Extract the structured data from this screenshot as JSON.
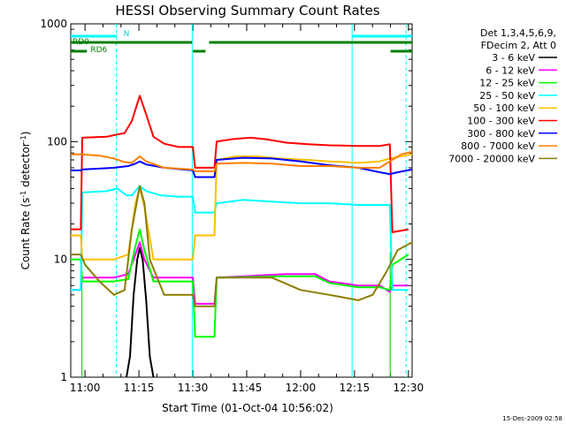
{
  "chart_data": {
    "type": "line",
    "title": "HESSI Observing Summary Count Rates",
    "xlabel": "Start Time (01-Oct-04 10:56:02)",
    "ylabel": "Count Rate (s⁻¹ detector⁻¹)",
    "ylabel_base": "Count Rate (s",
    "ylabel_sup1": "-1",
    "ylabel_mid": " detector",
    "ylabel_sup2": "-1",
    "ylabel_end": ")",
    "x_unit": "minutes after 10:56:02",
    "xlim": [
      0,
      95
    ],
    "ylim": [
      1,
      1000
    ],
    "yscale": "log",
    "x_ticks": [
      {
        "label": "11:00",
        "minute": 3.97
      },
      {
        "label": "11:15",
        "minute": 18.97
      },
      {
        "label": "11:30",
        "minute": 33.97
      },
      {
        "label": "11:45",
        "minute": 48.97
      },
      {
        "label": "12:00",
        "minute": 63.97
      },
      {
        "label": "12:15",
        "minute": 78.97
      },
      {
        "label": "12:30",
        "minute": 93.97
      }
    ],
    "y_ticks": [
      {
        "label": "1",
        "value": 1
      },
      {
        "label": "10",
        "value": 10
      },
      {
        "label": "100",
        "value": 100
      },
      {
        "label": "1000",
        "value": 1000
      }
    ],
    "legend_header": [
      "Det 1,3,4,5,6,9,",
      "FDecim 2, Att 0"
    ],
    "legend_position": "right",
    "footer_stamp": "15-Dec-2009 02:58",
    "series": [
      {
        "name": "3 - 6 keV",
        "color": "#000000",
        "points": [
          [
            15.5,
            0.6
          ],
          [
            16.5,
            1.5
          ],
          [
            17.5,
            5
          ],
          [
            18.5,
            10
          ],
          [
            19.2,
            12.5
          ],
          [
            20,
            10
          ],
          [
            21,
            4.5
          ],
          [
            22,
            1.5
          ],
          [
            23,
            0.6
          ]
        ]
      },
      {
        "name": "6 - 12 keV",
        "color": "#ff00ff",
        "points": [
          [
            0,
            5.5
          ],
          [
            2.8,
            5.5
          ],
          [
            3.2,
            7
          ],
          [
            12,
            7
          ],
          [
            16,
            7.5
          ],
          [
            18,
            11
          ],
          [
            19.2,
            14
          ],
          [
            20.5,
            10
          ],
          [
            23,
            7
          ],
          [
            34,
            7
          ],
          [
            34.6,
            4.2
          ],
          [
            40,
            4.2
          ],
          [
            40.6,
            7
          ],
          [
            60,
            7.5
          ],
          [
            68,
            7.5
          ],
          [
            72,
            6.5
          ],
          [
            80,
            6
          ],
          [
            86,
            6
          ],
          [
            88.8,
            5.3
          ],
          [
            89.5,
            6
          ],
          [
            94,
            6
          ]
        ]
      },
      {
        "name": "12 - 25 keV",
        "color": "#00ff00",
        "points": [
          [
            0,
            10
          ],
          [
            2.8,
            10
          ],
          [
            3.2,
            6.5
          ],
          [
            12,
            6.5
          ],
          [
            16,
            6.8
          ],
          [
            18,
            13
          ],
          [
            19.2,
            18
          ],
          [
            20.5,
            12
          ],
          [
            23,
            6.5
          ],
          [
            34,
            6.5
          ],
          [
            34.6,
            2.2
          ],
          [
            40,
            2.2
          ],
          [
            40.6,
            7
          ],
          [
            60,
            7.2
          ],
          [
            68,
            7.2
          ],
          [
            72,
            6.3
          ],
          [
            80,
            5.8
          ],
          [
            86,
            5.8
          ],
          [
            88.8,
            5.5
          ],
          [
            89.5,
            9
          ],
          [
            94,
            11
          ]
        ]
      },
      {
        "name": "25 - 50 keV",
        "color": "#00ffff",
        "points": [
          [
            0,
            5.5
          ],
          [
            2.8,
            5.5
          ],
          [
            3.2,
            37
          ],
          [
            10,
            38
          ],
          [
            13,
            40
          ],
          [
            15.5,
            35
          ],
          [
            17,
            35
          ],
          [
            19.2,
            42
          ],
          [
            21,
            38
          ],
          [
            25,
            35
          ],
          [
            30,
            34
          ],
          [
            34,
            34
          ],
          [
            34.6,
            25
          ],
          [
            40,
            25
          ],
          [
            40.6,
            30
          ],
          [
            48,
            32
          ],
          [
            56,
            31
          ],
          [
            64,
            30
          ],
          [
            72,
            30
          ],
          [
            80,
            29
          ],
          [
            86,
            29
          ],
          [
            88.8,
            29
          ],
          [
            89.5,
            5.5
          ],
          [
            94,
            5.5
          ]
        ]
      },
      {
        "name": "50 - 100 keV",
        "color": "#ffbf00",
        "points": [
          [
            0,
            16
          ],
          [
            2.8,
            16
          ],
          [
            3.2,
            10
          ],
          [
            12,
            10
          ],
          [
            16,
            11
          ],
          [
            18,
            30
          ],
          [
            19.2,
            40
          ],
          [
            20.5,
            28
          ],
          [
            23,
            10
          ],
          [
            34,
            10
          ],
          [
            34.6,
            16
          ],
          [
            40,
            16
          ],
          [
            40.6,
            70
          ],
          [
            46,
            75
          ],
          [
            52,
            75
          ],
          [
            58,
            72
          ],
          [
            66,
            70
          ],
          [
            72,
            68
          ],
          [
            80,
            66
          ],
          [
            86,
            68
          ],
          [
            88.8,
            72
          ],
          [
            92,
            75
          ],
          [
            95,
            78
          ]
        ]
      },
      {
        "name": "100 - 300 keV",
        "color": "#ff0000",
        "points": [
          [
            0,
            18
          ],
          [
            2.8,
            18
          ],
          [
            3.2,
            108
          ],
          [
            10,
            110
          ],
          [
            13,
            115
          ],
          [
            15,
            118
          ],
          [
            17,
            150
          ],
          [
            19.2,
            245
          ],
          [
            21,
            170
          ],
          [
            23,
            110
          ],
          [
            26,
            96
          ],
          [
            30,
            90
          ],
          [
            34,
            90
          ],
          [
            34.6,
            60
          ],
          [
            40,
            60
          ],
          [
            40.6,
            100
          ],
          [
            45,
            105
          ],
          [
            50,
            108
          ],
          [
            54,
            105
          ],
          [
            60,
            98
          ],
          [
            66,
            95
          ],
          [
            72,
            93
          ],
          [
            80,
            92
          ],
          [
            86,
            92
          ],
          [
            88.8,
            95
          ],
          [
            89.5,
            17
          ],
          [
            94,
            18
          ]
        ]
      },
      {
        "name": "300 - 800 keV",
        "color": "#0000ff",
        "points": [
          [
            0,
            57
          ],
          [
            2.8,
            57
          ],
          [
            3.2,
            58
          ],
          [
            12,
            60
          ],
          [
            16,
            62
          ],
          [
            18,
            65
          ],
          [
            19.2,
            68
          ],
          [
            21,
            64
          ],
          [
            26,
            60
          ],
          [
            34,
            57
          ],
          [
            34.6,
            50
          ],
          [
            40,
            50
          ],
          [
            40.6,
            70
          ],
          [
            48,
            73
          ],
          [
            56,
            72
          ],
          [
            64,
            68
          ],
          [
            72,
            63
          ],
          [
            80,
            60
          ],
          [
            86,
            55
          ],
          [
            88.8,
            53
          ],
          [
            91,
            55
          ],
          [
            95,
            58
          ]
        ]
      },
      {
        "name": "800 - 7000 keV",
        "color": "#ff7f00",
        "points": [
          [
            0,
            78
          ],
          [
            3,
            78
          ],
          [
            8,
            76
          ],
          [
            12,
            72
          ],
          [
            15,
            67
          ],
          [
            17,
            66
          ],
          [
            19.2,
            75
          ],
          [
            21,
            68
          ],
          [
            26,
            60
          ],
          [
            34,
            58
          ],
          [
            34.6,
            56
          ],
          [
            40,
            56
          ],
          [
            40.6,
            65
          ],
          [
            48,
            66
          ],
          [
            56,
            65
          ],
          [
            64,
            62
          ],
          [
            72,
            62
          ],
          [
            80,
            60
          ],
          [
            86,
            60
          ],
          [
            88.8,
            68
          ],
          [
            92,
            78
          ],
          [
            95,
            82
          ]
        ]
      },
      {
        "name": "7000 - 20000 keV",
        "color": "#8b7d00",
        "points": [
          [
            0,
            11
          ],
          [
            2.8,
            11
          ],
          [
            4,
            9
          ],
          [
            8,
            6.5
          ],
          [
            12,
            5
          ],
          [
            15,
            5.5
          ],
          [
            17,
            18
          ],
          [
            19.2,
            42
          ],
          [
            20.5,
            30
          ],
          [
            22,
            10
          ],
          [
            26,
            5
          ],
          [
            34,
            5
          ],
          [
            34.6,
            4
          ],
          [
            40,
            4
          ],
          [
            40.6,
            7
          ],
          [
            48,
            7
          ],
          [
            56,
            7
          ],
          [
            64,
            5.5
          ],
          [
            72,
            5
          ],
          [
            80,
            4.5
          ],
          [
            84,
            5
          ],
          [
            88,
            8
          ],
          [
            91,
            12
          ],
          [
            95,
            14
          ]
        ]
      }
    ],
    "markers": {
      "cyan_vlines": [
        12.7,
        33.8,
        78.3,
        93.3
      ],
      "cyan_dash_vlines": [
        12.7,
        93.3
      ],
      "cyan_solid_vlines": [
        33.8,
        78.3
      ],
      "green_vlines": [
        3.1,
        88.9
      ],
      "bars": [
        {
          "label": "N",
          "color": "#00ffff",
          "row": "N",
          "segments": [
            [
              0,
              12.7
            ],
            [
              78.3,
              95
            ]
          ]
        },
        {
          "label": "RD0",
          "color": "#007f00",
          "row": "RD0",
          "segments": [
            [
              0,
              33.8
            ],
            [
              38.5,
              95
            ]
          ]
        },
        {
          "label": "RD6",
          "color": "#007f00",
          "row": "RD6",
          "segments": [
            [
              0,
              4.5
            ],
            [
              34,
              37.5
            ],
            [
              89,
              95
            ]
          ]
        }
      ]
    }
  }
}
